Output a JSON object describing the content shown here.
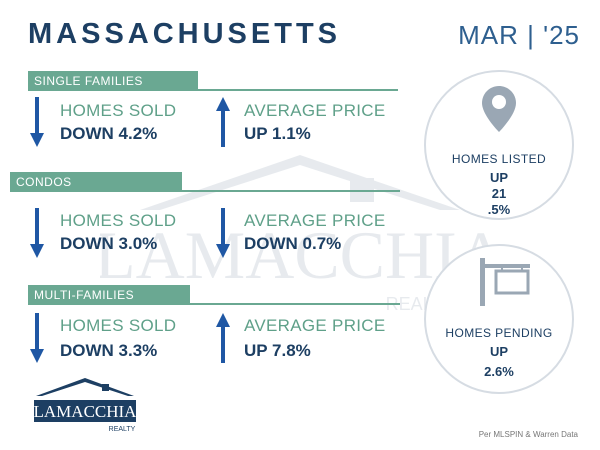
{
  "header": {
    "title": "MASSACHUSETTS",
    "date": "MAR | '25"
  },
  "sections": [
    {
      "label": "SINGLE FAMILIES",
      "sold_label": "HOMES SOLD",
      "sold_value": "DOWN 4.2%",
      "price_label": "AVERAGE PRICE",
      "price_value": "UP 1.1%"
    },
    {
      "label": "CONDOS",
      "sold_label": "HOMES SOLD",
      "sold_value": "DOWN 3.0%",
      "price_label": "AVERAGE PRICE",
      "price_value": "DOWN 0.7%"
    },
    {
      "label": "MULTI-FAMILIES",
      "sold_label": "HOMES SOLD",
      "sold_value": "DOWN 3.3%",
      "price_label": "AVERAGE PRICE",
      "price_value": "UP 7.8%"
    }
  ],
  "listed": {
    "label": "HOMES LISTED",
    "line1": "UP",
    "line2": "21",
    "line3": ".5%"
  },
  "pending": {
    "label": "HOMES PENDING",
    "line1": "UP",
    "line2": "2.6%"
  },
  "logo": {
    "name": "LAMACCHIA",
    "sub": "REALTY"
  },
  "watermark": {
    "name": "LAMACCHIA",
    "sub": "REALTY"
  },
  "credit": "Per MLSPIN & Warren Data",
  "colors": {
    "navy": "#1d3f63",
    "accent": "#6aa892",
    "arrow": "#1f57a4"
  },
  "icons": {
    "down": "arrow-down-icon",
    "up": "arrow-up-icon",
    "pin": "map-pin-icon",
    "sign": "sale-sign-icon"
  }
}
